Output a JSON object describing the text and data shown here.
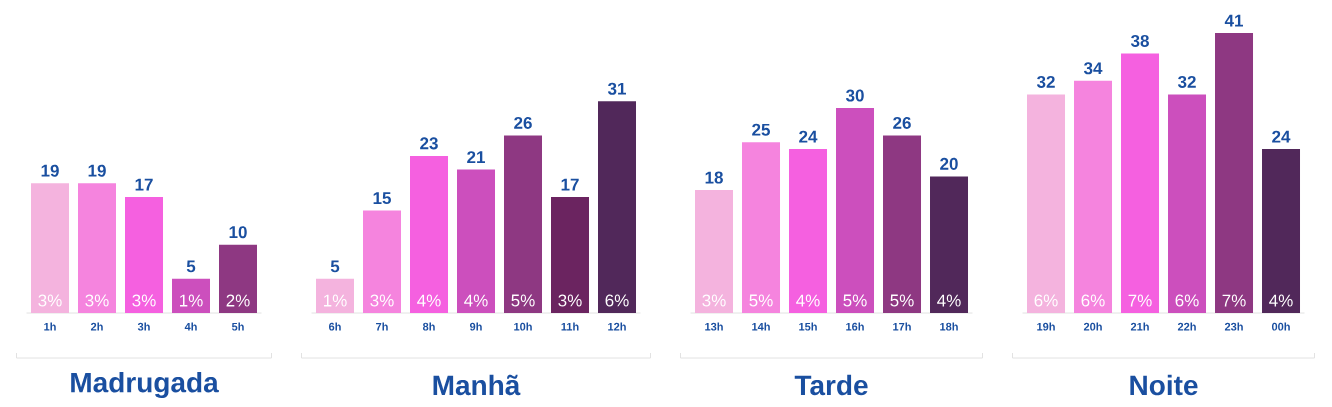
{
  "chart_data": [
    {
      "type": "bar",
      "xlabel": "Madrugada",
      "data_labels": true,
      "categories": [
        "1h",
        "2h",
        "3h",
        "4h",
        "5h"
      ],
      "values": [
        19,
        19,
        17,
        5,
        10
      ],
      "colors": [
        "#f4b3de",
        "#f584de",
        "#f560e0",
        "#cc4fbd",
        "#8e3882"
      ],
      "annotations": [
        "3%",
        "3%",
        "3%",
        "1%",
        "2%"
      ]
    },
    {
      "type": "bar",
      "xlabel": "Manhã",
      "data_labels": true,
      "categories": [
        "6h",
        "7h",
        "8h",
        "9h",
        "10h",
        "11h",
        "12h"
      ],
      "values": [
        5,
        15,
        23,
        21,
        26,
        17,
        31
      ],
      "colors": [
        "#f4b3de",
        "#f584de",
        "#f560e0",
        "#cc4fbd",
        "#8e3882",
        "#6b2460",
        "#51285a"
      ],
      "annotations": [
        "1%",
        "3%",
        "4%",
        "4%",
        "5%",
        "3%",
        "6%"
      ]
    },
    {
      "type": "bar",
      "xlabel": "Tarde",
      "data_labels": true,
      "categories": [
        "13h",
        "14h",
        "15h",
        "16h",
        "17h",
        "18h"
      ],
      "values": [
        18,
        25,
        24,
        30,
        26,
        20
      ],
      "colors": [
        "#f4b3de",
        "#f584de",
        "#f560e0",
        "#cc4fbd",
        "#8e3882",
        "#51285a"
      ],
      "annotations": [
        "3%",
        "5%",
        "4%",
        "5%",
        "5%",
        "4%"
      ]
    },
    {
      "type": "bar",
      "xlabel": "Noite",
      "data_labels": true,
      "categories": [
        "19h",
        "20h",
        "21h",
        "22h",
        "23h",
        "00h"
      ],
      "values": [
        32,
        34,
        38,
        32,
        41,
        24
      ],
      "colors": [
        "#f4b3de",
        "#f584de",
        "#f560e0",
        "#cc4fbd",
        "#8e3882",
        "#51285a"
      ],
      "annotations": [
        "6%",
        "6%",
        "7%",
        "6%",
        "7%",
        "4%"
      ]
    }
  ]
}
